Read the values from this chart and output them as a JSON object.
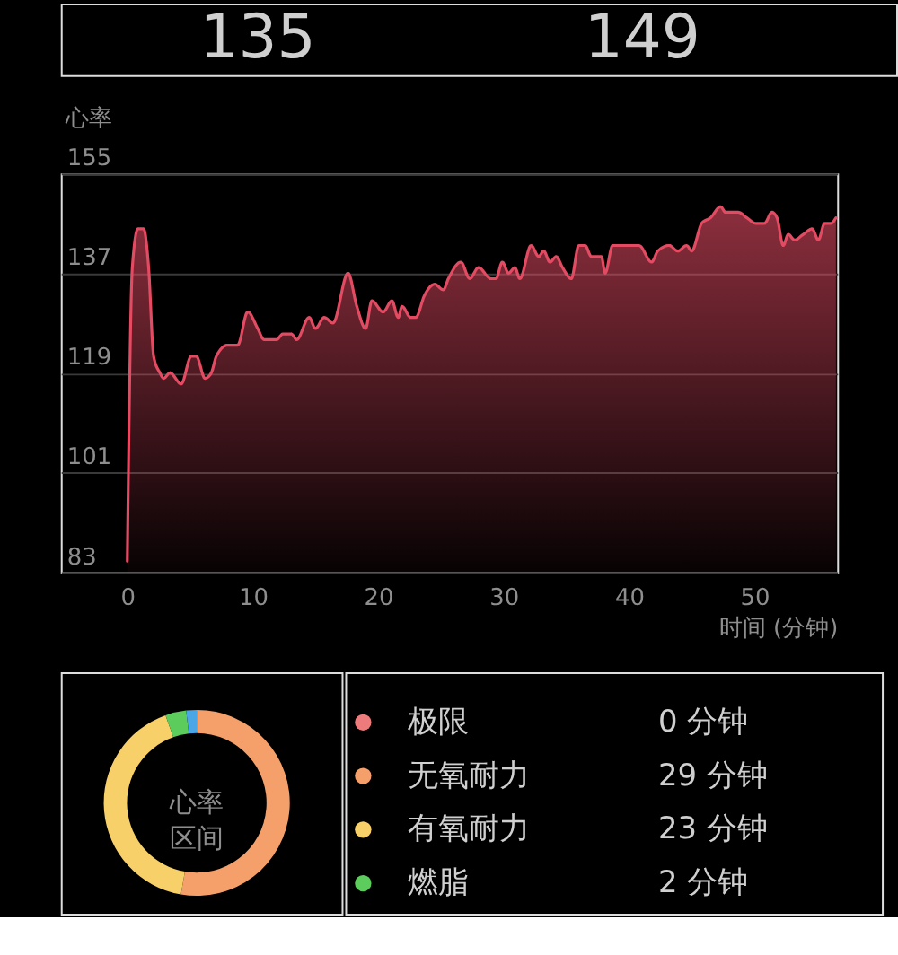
{
  "chart_data": [
    {
      "type": "other",
      "annotations": [
        "135",
        "149"
      ]
    },
    {
      "type": "area",
      "ylabel": "心率",
      "xlabel": "时间 (分钟)",
      "x": [
        0,
        0.4,
        0.85,
        1.3,
        1.7,
        2.1,
        2.6,
        2.9,
        3.4,
        4.3,
        5.1,
        5.5,
        6.2,
        6.7,
        7.1,
        8.0,
        8.8,
        9.6,
        10.4,
        10.9,
        11.9,
        12.4,
        13.1,
        13.5,
        14.5,
        15.0,
        15.7,
        16.4,
        17.6,
        18.3,
        19.0,
        19.5,
        20.4,
        21.1,
        21.6,
        21.9,
        22.6,
        23.0,
        23.7,
        24.5,
        25.2,
        25.6,
        26.6,
        27.3,
        28.0,
        29.0,
        29.4,
        29.9,
        30.4,
        30.9,
        31.3,
        32.2,
        32.8,
        33.2,
        33.7,
        34.2,
        34.7,
        35.4,
        36.0,
        36.5,
        37.0,
        37.8,
        38.1,
        38.7,
        40.8,
        41.8,
        42.3,
        43.2,
        43.9,
        44.6,
        45.0,
        45.8,
        46.5,
        47.3,
        47.7,
        48.2,
        48.7,
        49.4,
        50.1,
        50.8,
        51.4,
        51.8,
        52.3,
        52.7,
        53.2,
        53.9,
        54.6,
        55.1,
        55.6,
        56.1,
        56.5
      ],
      "series": [
        {
          "color": "#e34b63",
          "values": [
            85,
            138,
            145,
            145,
            138,
            122,
            119,
            118,
            119,
            117,
            122,
            122,
            118,
            119,
            122,
            124,
            124,
            130,
            127,
            125,
            125,
            126,
            126,
            125,
            129,
            127,
            129,
            128,
            137,
            131,
            127,
            132,
            130,
            132,
            129,
            131,
            129,
            129,
            133,
            135,
            134,
            136,
            139,
            136,
            138,
            136,
            136,
            139,
            137,
            138,
            136,
            142,
            140,
            141,
            139,
            140,
            138,
            136,
            142,
            142,
            140,
            140,
            137,
            142,
            142,
            139,
            141,
            142,
            141,
            142,
            141,
            146,
            147,
            149,
            148,
            148,
            148,
            147,
            146,
            146,
            148,
            147,
            142,
            144,
            143,
            144,
            145,
            143,
            146,
            146,
            147
          ]
        }
      ],
      "xlim": [
        -5.3,
        56.6
      ],
      "ylim": [
        83,
        155
      ],
      "xticks": [
        0,
        10,
        20,
        30,
        40,
        50
      ],
      "yticks": [
        83,
        101,
        119,
        137,
        155
      ],
      "grid": "y"
    },
    {
      "type": "donut",
      "categories": [
        "极限",
        "无氧耐力",
        "有氧耐力",
        "燃脂",
        null
      ],
      "values": [
        0,
        29,
        23,
        2,
        1
      ],
      "colors": [
        "#ee7b7b",
        "#f5a06b",
        "#f7d06a",
        "#5ccc5c",
        "#4ba6e6"
      ],
      "value_labels": [
        "0 分钟",
        "29 分钟",
        "23 分钟",
        "2 分钟",
        null
      ],
      "annotations": [
        "心率区间"
      ],
      "legend": "right"
    }
  ]
}
